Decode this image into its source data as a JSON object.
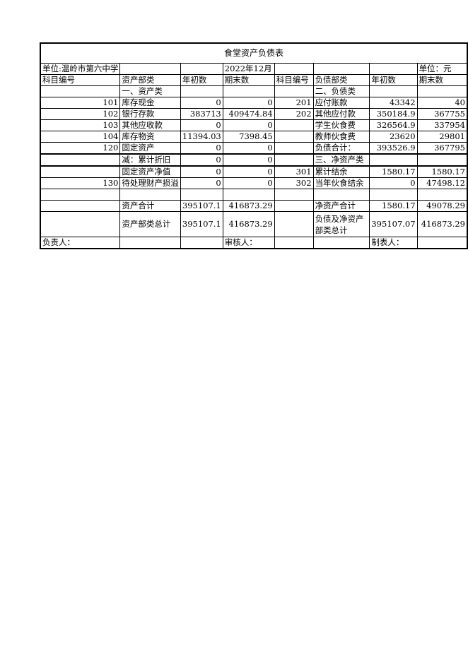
{
  "title": "食堂资产负债表",
  "rows": [
    [
      "单位:温岭市第六中学",
      "",
      "",
      "2022年12月",
      "",
      "",
      "",
      "单位：元"
    ],
    [
      "科目编号",
      "资产部类",
      "年初数",
      "期末数",
      "科目编号",
      "负债部类",
      "年初数",
      "期末数"
    ],
    [
      "",
      "一、资产类",
      "",
      "",
      "",
      "二、负债类",
      "",
      ""
    ],
    [
      "101",
      "库存现金",
      "0",
      "0",
      "201",
      "应付账款",
      "43342",
      "40"
    ],
    [
      "102",
      "银行存款",
      "383713",
      "409474.84",
      "202",
      "其他应付款",
      "350184.9",
      "367755"
    ],
    [
      "103",
      "其他应收款",
      "0",
      "0",
      "",
      "学生伙食费",
      "326564.9",
      "337954"
    ],
    [
      "104",
      "库存物资",
      "11394.03",
      "7398.45",
      "",
      "教师伙食费",
      "23620",
      "29801"
    ],
    [
      "120",
      "固定资产",
      "0",
      "0",
      "",
      "负债合计：",
      "393526.9",
      "367795"
    ],
    [
      "",
      "减：累计折旧",
      "0",
      "0",
      "",
      "三、净资产类",
      "",
      ""
    ],
    [
      "",
      "固定资产净值",
      "0",
      "0",
      "301",
      "累计结余",
      "1580.17",
      "1580.17"
    ],
    [
      "130",
      "待处理财产损溢",
      "0",
      "0",
      "302",
      "当年伙食结余",
      "0",
      "47498.12"
    ],
    [
      "",
      "",
      "",
      "",
      "",
      "",
      "",
      ""
    ],
    [
      "",
      "资产合计",
      "395107.1",
      "416873.29",
      "",
      "净资产合计",
      "1580.17",
      "49078.29"
    ],
    [
      "",
      "资产部类总计",
      "395107.1",
      "416873.29",
      "",
      "负债及净资产部类总计",
      "395107.07",
      "416873.29"
    ],
    [
      "负责人：",
      "",
      "",
      "审核人：",
      "",
      "",
      "制表人：",
      ""
    ]
  ]
}
